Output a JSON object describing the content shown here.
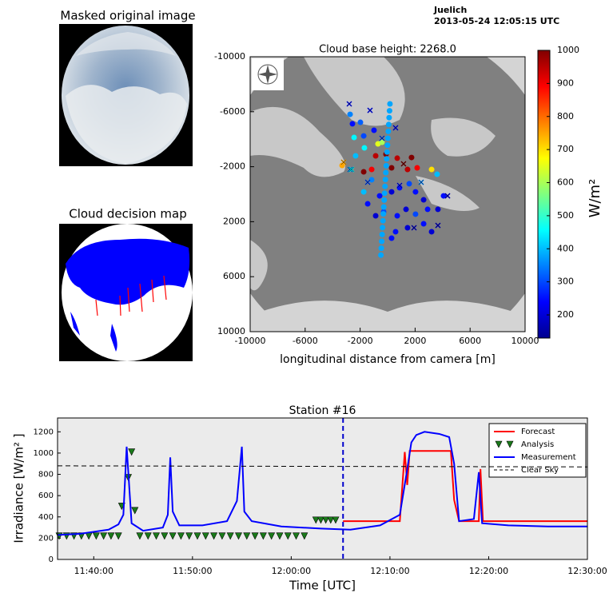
{
  "header": {
    "site": "Juelich",
    "timestamp": "2013-05-24 12:05:15 UTC"
  },
  "panels": {
    "original_title": "Masked original image",
    "decision_title": "Cloud decision map"
  },
  "chart_data": [
    {
      "type": "scatter",
      "title": "Cloud base height: 2268.0",
      "xlabel": "longitudinal distance from camera [m]",
      "xlim": [
        -10000,
        10000
      ],
      "xticks": [
        -10000,
        -6000,
        -2000,
        2000,
        6000,
        10000
      ],
      "ylim": [
        10000,
        -10000
      ],
      "yticks": [
        -10000,
        -6000,
        -2000,
        2000,
        6000,
        10000
      ],
      "colorbar": {
        "label": "W/m²",
        "lim": [
          130,
          1000
        ],
        "ticks": [
          200,
          300,
          400,
          500,
          600,
          700,
          800,
          900,
          1000
        ]
      },
      "series": [
        {
          "marker": "o",
          "x": [
            -2730,
            -2560,
            -1980,
            -2440,
            -1740,
            -990,
            -700,
            -410,
            -870,
            -120,
            700,
            1740,
            1450,
            290,
            -1160,
            -1740,
            -3310,
            2150,
            3200,
            3600,
            -1160,
            -580,
            290,
            870,
            1570,
            2030,
            2620,
            -1450,
            -870,
            -290,
            700,
            1340,
            2030,
            2910,
            3660,
            4070,
            580,
            1450,
            2620,
            3200,
            290,
            -1740,
            -2330,
            -1690
          ],
          "y": [
            -5810,
            -5120,
            -5230,
            -4130,
            -4240,
            -4650,
            -3660,
            -3780,
            -2790,
            -2910,
            -2620,
            -2670,
            -1800,
            -1920,
            -1800,
            -1630,
            -2090,
            -1920,
            -1800,
            -1450,
            -1050,
            120,
            -170,
            -470,
            -760,
            -170,
            410,
            700,
            1570,
            1280,
            1570,
            1100,
            1450,
            1100,
            1100,
            120,
            2730,
            2440,
            2150,
            2730,
            3200,
            -170,
            -2790,
            -3370
          ],
          "values": [
            350,
            250,
            320,
            450,
            300,
            250,
            650,
            600,
            950,
            1000,
            950,
            1000,
            950,
            1000,
            900,
            1000,
            750,
            900,
            700,
            400,
            350,
            250,
            200,
            250,
            300,
            250,
            200,
            250,
            200,
            300,
            250,
            200,
            300,
            250,
            200,
            250,
            250,
            200,
            250,
            200,
            250,
            400,
            400,
            450
          ]
        },
        {
          "marker": "o",
          "x": [
            170,
            140,
            110,
            80,
            50,
            20,
            -10,
            -40,
            -70,
            -100,
            -130,
            -160,
            -190,
            -220,
            -250,
            -280,
            -310,
            -340,
            -370,
            -400,
            -430,
            -460,
            -490
          ],
          "y": [
            -6570,
            -6070,
            -5570,
            -5070,
            -4570,
            -4070,
            -3570,
            -3070,
            -2570,
            -2070,
            -1570,
            -1070,
            -570,
            -70,
            430,
            930,
            1430,
            1930,
            2430,
            2930,
            3430,
            3930,
            4430
          ],
          "values": [
            380,
            380,
            380,
            380,
            380,
            380,
            380,
            380,
            380,
            380,
            380,
            380,
            380,
            380,
            380,
            380,
            380,
            380,
            380,
            380,
            380,
            380,
            380
          ]
        },
        {
          "marker": "x",
          "x": [
            -2790,
            -1280,
            580,
            -410,
            -3200,
            -2730,
            -1450,
            1160,
            870,
            4360,
            3660,
            1920,
            2440,
            -2620
          ],
          "y": [
            -6570,
            -6100,
            -4830,
            -4070,
            -2330,
            -1800,
            -870,
            -2210,
            -640,
            120,
            2270,
            2440,
            -870,
            -1800
          ],
          "values": [
            250,
            250,
            250,
            300,
            750,
            350,
            300,
            1000,
            250,
            200,
            200,
            200,
            350,
            450
          ]
        }
      ]
    },
    {
      "type": "line",
      "title": "Station #16",
      "xlabel": "Time [UTC]",
      "ylabel": "Irradiance [W/m² ]",
      "xlim": [
        "11:36:20",
        "12:30:00"
      ],
      "xticks": [
        "11:40:00",
        "11:50:00",
        "12:00:00",
        "12:10:00",
        "12:20:00",
        "12:30:00"
      ],
      "ylim": [
        0,
        1330
      ],
      "yticks": [
        0,
        200,
        400,
        600,
        800,
        1000,
        1200
      ],
      "vline": {
        "x": "12:05:15",
        "color": "#0000cc"
      },
      "legend": "upper right",
      "series": [
        {
          "name": "Forecast",
          "color": "#ff0000",
          "x": [
            "12:05:15",
            "12:11:00",
            "12:11:30",
            "12:11:45",
            "12:12:00",
            "12:16:10",
            "12:16:30",
            "12:17:00",
            "12:19:00",
            "12:19:10",
            "12:19:25",
            "12:30:00"
          ],
          "values": [
            360,
            360,
            1010,
            700,
            1020,
            1020,
            560,
            360,
            360,
            850,
            360,
            360
          ]
        },
        {
          "name": "Analysis",
          "color": "#1a7a1a",
          "marker": "v",
          "x": [
            "11:36:30",
            "11:37:15",
            "11:38:00",
            "11:38:45",
            "11:39:30",
            "11:40:15",
            "11:41:00",
            "11:41:45",
            "11:42:30",
            "11:42:50",
            "11:43:30",
            "11:43:50",
            "11:44:10",
            "11:44:40",
            "11:45:30",
            "11:46:20",
            "11:47:10",
            "11:48:00",
            "11:48:50",
            "11:49:40",
            "11:50:30",
            "11:51:20",
            "11:52:10",
            "11:53:00",
            "11:53:50",
            "11:54:40",
            "11:55:30",
            "11:56:20",
            "11:57:10",
            "11:58:00",
            "11:58:50",
            "11:59:40",
            "12:00:30",
            "12:01:20",
            "12:02:30",
            "12:03:00",
            "12:03:30",
            "12:04:00",
            "12:04:30"
          ],
          "values": [
            220,
            220,
            220,
            220,
            220,
            220,
            220,
            220,
            220,
            500,
            770,
            1010,
            460,
            220,
            220,
            220,
            220,
            220,
            220,
            220,
            220,
            220,
            220,
            220,
            220,
            220,
            220,
            220,
            220,
            220,
            220,
            220,
            220,
            220,
            370,
            370,
            370,
            370,
            370
          ]
        },
        {
          "name": "Measurement",
          "color": "#0000ff",
          "x": [
            "11:36:20",
            "11:38:30",
            "11:41:30",
            "11:42:30",
            "11:43:00",
            "11:43:20",
            "11:43:35",
            "11:43:50",
            "11:45:00",
            "11:47:00",
            "11:47:30",
            "11:47:45",
            "11:48:00",
            "11:48:40",
            "11:51:00",
            "11:53:30",
            "11:54:30",
            "11:55:00",
            "11:55:15",
            "11:56:00",
            "11:59:00",
            "12:03:00",
            "12:06:00",
            "12:09:00",
            "12:11:00",
            "12:11:40",
            "12:12:10",
            "12:12:40",
            "12:13:30",
            "12:15:00",
            "12:16:00",
            "12:16:30",
            "12:17:00",
            "12:18:30",
            "12:19:00",
            "12:19:20",
            "12:22:00",
            "12:26:00",
            "12:30:00"
          ],
          "values": [
            230,
            240,
            280,
            330,
            420,
            1060,
            700,
            340,
            270,
            300,
            420,
            960,
            450,
            320,
            320,
            360,
            550,
            1060,
            450,
            360,
            310,
            290,
            280,
            320,
            420,
            800,
            1100,
            1170,
            1200,
            1180,
            1150,
            900,
            360,
            380,
            820,
            340,
            320,
            310,
            310
          ]
        },
        {
          "name": "Clear Sky",
          "color": "#000000",
          "linestyle": "dashed",
          "x": [
            "11:36:20",
            "12:30:00"
          ],
          "values": [
            880,
            870
          ]
        }
      ]
    }
  ]
}
